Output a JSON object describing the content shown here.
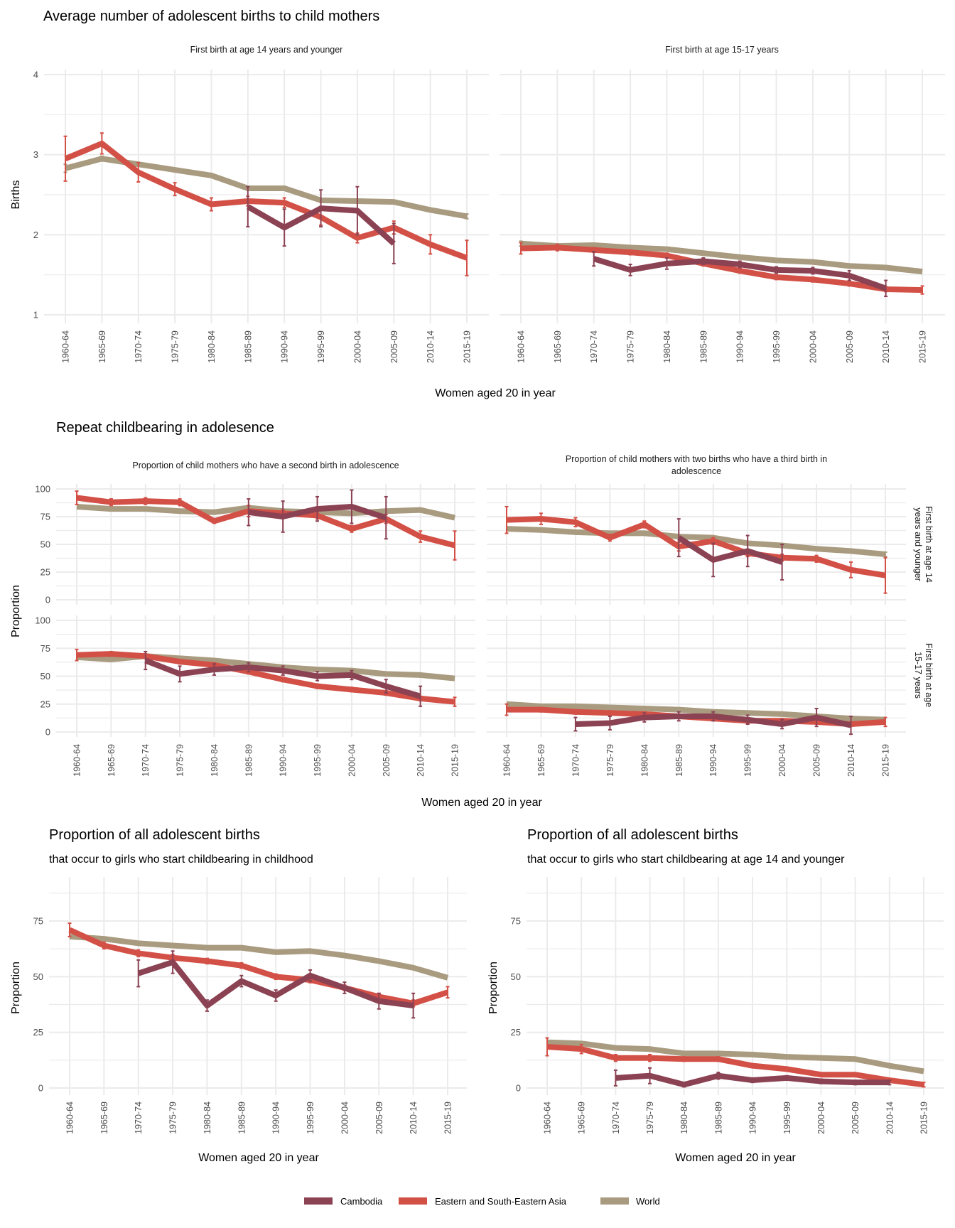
{
  "colors": {
    "Cambodia": "#8b4253",
    "Eastern and South-Eastern Asia": "#d35047",
    "World": "#a99b7f"
  },
  "legend": {
    "items": [
      "Cambodia",
      "Eastern and South-Eastern Asia",
      "World"
    ]
  },
  "chart_data": [
    {
      "id": "births-14",
      "type": "line",
      "section_title": "Average number of adolescent births to child mothers",
      "title": "First birth at age 14 years and younger",
      "xlabel": "Women aged 20 in year",
      "ylabel": "Births",
      "ylim": [
        1,
        4
      ],
      "yticks": [
        1,
        2,
        3,
        4
      ],
      "grid": true,
      "categories": [
        "1960-64",
        "1965-69",
        "1970-74",
        "1975-79",
        "1980-84",
        "1985-89",
        "1990-94",
        "1995-99",
        "2000-04",
        "2005-09",
        "2010-14",
        "2015-19"
      ],
      "series": [
        {
          "name": "World",
          "values": [
            2.83,
            2.95,
            2.88,
            2.81,
            2.74,
            2.58,
            2.58,
            2.43,
            2.42,
            2.41,
            2.31,
            2.23
          ],
          "err": [
            0.05,
            0.03,
            0.02,
            null,
            null,
            null,
            null,
            null,
            null,
            null,
            null,
            0.03
          ]
        },
        {
          "name": "Eastern and South-Eastern Asia",
          "values": [
            2.95,
            3.14,
            2.78,
            2.57,
            2.38,
            2.42,
            2.4,
            2.22,
            1.96,
            2.09,
            1.88,
            1.71
          ],
          "err": [
            0.28,
            0.13,
            0.12,
            0.08,
            0.08,
            0.06,
            0.06,
            0.1,
            0.06,
            0.08,
            0.12,
            0.22
          ]
        },
        {
          "name": "Cambodia",
          "values": [
            null,
            null,
            null,
            null,
            null,
            2.35,
            2.09,
            2.33,
            2.3,
            1.89,
            null,
            null
          ],
          "err": [
            null,
            null,
            null,
            null,
            null,
            0.25,
            0.23,
            0.23,
            0.3,
            0.25,
            null,
            null
          ]
        }
      ]
    },
    {
      "id": "births-1517",
      "type": "line",
      "title": "First birth at age 15-17 years",
      "xlabel": "Women aged 20 in year",
      "ylim": [
        1,
        4
      ],
      "yticks": [
        1,
        2,
        3,
        4
      ],
      "grid": true,
      "categories": [
        "1960-64",
        "1965-69",
        "1970-74",
        "1975-79",
        "1980-84",
        "1985-89",
        "1990-94",
        "1995-99",
        "2000-04",
        "2005-09",
        "2010-14",
        "2015-19"
      ],
      "series": [
        {
          "name": "World",
          "values": [
            1.89,
            1.86,
            1.87,
            1.84,
            1.82,
            1.77,
            1.72,
            1.68,
            1.66,
            1.61,
            1.59,
            1.54
          ],
          "err": [
            0.03,
            null,
            null,
            null,
            null,
            null,
            null,
            null,
            null,
            null,
            null,
            null
          ]
        },
        {
          "name": "Eastern and South-Eastern Asia",
          "values": [
            1.83,
            1.84,
            1.81,
            1.78,
            1.74,
            1.64,
            1.55,
            1.47,
            1.44,
            1.39,
            1.32,
            1.31
          ],
          "err": [
            0.07,
            0.04,
            0.03,
            0.03,
            0.03,
            0.03,
            0.03,
            0.03,
            0.03,
            0.03,
            0.03,
            0.05
          ]
        },
        {
          "name": "Cambodia",
          "values": [
            null,
            null,
            1.7,
            1.56,
            1.64,
            1.67,
            1.63,
            1.56,
            1.55,
            1.49,
            1.33,
            null
          ],
          "err": [
            null,
            null,
            0.09,
            0.07,
            0.07,
            0.04,
            0.04,
            0.04,
            0.04,
            0.06,
            0.1,
            null
          ]
        }
      ]
    },
    {
      "id": "second-birth-14",
      "type": "line",
      "section_title": "Repeat childbearing in adolesence",
      "title": "Proportion of child mothers who have a second birth in adolescence",
      "row_label": "First birth at age 14 years and younger",
      "xlabel": "Women aged 20 in year",
      "ylabel": "Proportion",
      "ylim": [
        0,
        100
      ],
      "yticks": [
        0,
        25,
        50,
        75,
        100
      ],
      "grid": true,
      "categories": [
        "1960-64",
        "1965-69",
        "1970-74",
        "1975-79",
        "1980-84",
        "1985-89",
        "1990-94",
        "1995-99",
        "2000-04",
        "2005-09",
        "2010-14",
        "2015-19"
      ],
      "series": [
        {
          "name": "World",
          "values": [
            84,
            82,
            82,
            80,
            79,
            83,
            80,
            79,
            78,
            80,
            81,
            74
          ],
          "err": [
            null,
            null,
            null,
            null,
            null,
            null,
            null,
            null,
            null,
            null,
            null,
            null
          ]
        },
        {
          "name": "Eastern and South-Eastern Asia",
          "values": [
            92,
            88,
            89,
            88,
            71,
            80,
            78,
            76,
            64,
            73,
            57,
            49
          ],
          "err": [
            6,
            3,
            3,
            3,
            2,
            5,
            3,
            3,
            3,
            4,
            5,
            13
          ]
        },
        {
          "name": "Cambodia",
          "values": [
            null,
            null,
            null,
            null,
            null,
            79,
            75,
            82,
            84,
            74,
            null,
            null
          ],
          "err": [
            null,
            null,
            null,
            null,
            null,
            12,
            14,
            11,
            15,
            19,
            null,
            null
          ]
        }
      ]
    },
    {
      "id": "third-birth-14",
      "type": "line",
      "title": "Proportion of child mothers with two births who have a third birth in adolescence",
      "row_label": "First birth at age 14 years and younger",
      "xlabel": "Women aged 20 in year",
      "ylim": [
        0,
        100
      ],
      "yticks": [
        0,
        25,
        50,
        75,
        100
      ],
      "grid": true,
      "categories": [
        "1960-64",
        "1965-69",
        "1970-74",
        "1975-79",
        "1980-84",
        "1985-89",
        "1990-94",
        "1995-99",
        "2000-04",
        "2005-09",
        "2010-14",
        "2015-19"
      ],
      "series": [
        {
          "name": "World",
          "values": [
            64,
            63,
            61,
            60,
            60,
            57,
            56,
            51,
            49,
            46,
            44,
            41
          ],
          "err": [
            null,
            null,
            null,
            null,
            null,
            null,
            null,
            null,
            null,
            null,
            null,
            2
          ]
        },
        {
          "name": "Eastern and South-Eastern Asia",
          "values": [
            72,
            73,
            70,
            56,
            68,
            48,
            53,
            42,
            38,
            37,
            27,
            22
          ],
          "err": [
            12,
            5,
            4,
            3,
            3,
            4,
            3,
            3,
            3,
            3,
            7,
            16
          ]
        },
        {
          "name": "Cambodia",
          "values": [
            null,
            null,
            null,
            null,
            null,
            56,
            36,
            44,
            34,
            null,
            null,
            null
          ],
          "err": [
            null,
            null,
            null,
            null,
            null,
            17,
            15,
            14,
            16,
            null,
            null,
            null
          ]
        }
      ]
    },
    {
      "id": "second-birth-1517",
      "type": "line",
      "row_label": "First birth at age 15-17 years",
      "xlabel": "Women aged 20 in year",
      "ylabel": "Proportion",
      "ylim": [
        0,
        100
      ],
      "yticks": [
        0,
        25,
        50,
        75,
        100
      ],
      "grid": true,
      "categories": [
        "1960-64",
        "1965-69",
        "1970-74",
        "1975-79",
        "1980-84",
        "1985-89",
        "1990-94",
        "1995-99",
        "2000-04",
        "2005-09",
        "2010-14",
        "2015-19"
      ],
      "series": [
        {
          "name": "World",
          "values": [
            67,
            65,
            68,
            66,
            64,
            61,
            58,
            56,
            55,
            52,
            51,
            48
          ],
          "err": [
            null,
            null,
            null,
            null,
            null,
            null,
            null,
            null,
            null,
            null,
            null,
            null
          ]
        },
        {
          "name": "Eastern and South-Eastern Asia",
          "values": [
            69,
            70,
            68,
            63,
            60,
            54,
            47,
            41,
            38,
            35,
            30,
            27
          ],
          "err": [
            5,
            2,
            2,
            2,
            2,
            2,
            2,
            2,
            2,
            2,
            2,
            4
          ]
        },
        {
          "name": "Cambodia",
          "values": [
            null,
            null,
            64,
            52,
            56,
            58,
            55,
            50,
            51,
            41,
            32,
            null
          ],
          "err": [
            null,
            null,
            8,
            7,
            5,
            4,
            4,
            4,
            4,
            6,
            9,
            null
          ]
        }
      ]
    },
    {
      "id": "third-birth-1517",
      "type": "line",
      "row_label": "First birth at age 15-17 years",
      "xlabel": "Women aged 20 in year",
      "ylim": [
        0,
        100
      ],
      "yticks": [
        0,
        25,
        50,
        75,
        100
      ],
      "grid": true,
      "categories": [
        "1960-64",
        "1965-69",
        "1970-74",
        "1975-79",
        "1980-84",
        "1985-89",
        "1990-94",
        "1995-99",
        "2000-04",
        "2005-09",
        "2010-14",
        "2015-19"
      ],
      "series": [
        {
          "name": "World",
          "values": [
            25,
            23,
            23,
            22,
            21,
            20,
            18,
            17,
            16,
            14,
            12,
            11
          ],
          "err": [
            null,
            null,
            null,
            null,
            null,
            null,
            null,
            null,
            null,
            null,
            null,
            null
          ]
        },
        {
          "name": "Eastern and South-Eastern Asia",
          "values": [
            20,
            20,
            18,
            17,
            16,
            14,
            12,
            10,
            10,
            9,
            7,
            9
          ],
          "err": [
            5,
            2,
            2,
            2,
            2,
            2,
            2,
            2,
            2,
            2,
            2,
            4
          ]
        },
        {
          "name": "Cambodia",
          "values": [
            null,
            null,
            7,
            8,
            13,
            14,
            14,
            11,
            7,
            13,
            6,
            null
          ],
          "err": [
            null,
            null,
            6,
            6,
            4,
            4,
            4,
            4,
            4,
            8,
            8,
            null
          ]
        }
      ]
    },
    {
      "id": "share-childhood",
      "type": "line",
      "section_title": "Proportion of all adolescent births",
      "subtitle": "that occur to girls who start childbearing in childhood",
      "xlabel": "Women aged 20 in year",
      "ylabel": "Proportion",
      "ylim": [
        0,
        90
      ],
      "yticks": [
        0,
        25,
        50,
        75
      ],
      "grid": true,
      "categories": [
        "1960-64",
        "1965-69",
        "1970-74",
        "1975-79",
        "1980-84",
        "1985-89",
        "1990-94",
        "1995-99",
        "2000-04",
        "2005-09",
        "2010-14",
        "2015-19"
      ],
      "series": [
        {
          "name": "World",
          "values": [
            68,
            67,
            65,
            64,
            63,
            63,
            61,
            61.5,
            59.5,
            57,
            54,
            49.5
          ],
          "err": [
            null,
            null,
            null,
            null,
            null,
            null,
            null,
            null,
            null,
            null,
            null,
            null
          ]
        },
        {
          "name": "Eastern and South-Eastern Asia",
          "values": [
            71,
            64,
            60.5,
            58.5,
            57,
            55,
            50,
            48.5,
            45,
            41,
            38,
            43
          ],
          "err": [
            3,
            1.5,
            1.5,
            1.5,
            1.2,
            1.2,
            1.2,
            1.2,
            1.2,
            1.5,
            1.5,
            2.5
          ]
        },
        {
          "name": "Cambodia",
          "values": [
            null,
            null,
            51.5,
            56.5,
            37,
            48,
            41.5,
            50.5,
            45,
            39,
            37,
            null
          ],
          "err": [
            null,
            null,
            6,
            5,
            2.5,
            2.5,
            2.5,
            2.5,
            2.5,
            3.5,
            5.5,
            null
          ]
        }
      ]
    },
    {
      "id": "share-14",
      "type": "line",
      "section_title": "Proportion of all adolescent births",
      "subtitle": "that occur to girls who start childbearing at age 14 and younger",
      "xlabel": "Women aged 20 in year",
      "ylabel": "Proportion",
      "ylim": [
        0,
        90
      ],
      "yticks": [
        0,
        25,
        50,
        75
      ],
      "grid": true,
      "categories": [
        "1960-64",
        "1965-69",
        "1970-74",
        "1975-79",
        "1980-84",
        "1985-89",
        "1990-94",
        "1995-99",
        "2000-04",
        "2005-09",
        "2010-14",
        "2015-19"
      ],
      "series": [
        {
          "name": "World",
          "values": [
            20.5,
            20,
            18,
            17.5,
            15.5,
            15.5,
            15,
            14,
            13.5,
            13,
            10,
            7.5
          ],
          "err": [
            null,
            null,
            null,
            null,
            null,
            null,
            null,
            null,
            null,
            null,
            null,
            null
          ]
        },
        {
          "name": "Eastern and South-Eastern Asia",
          "values": [
            18.5,
            17.5,
            13.5,
            13.5,
            13,
            13,
            10,
            8.5,
            6,
            6,
            3.5,
            1.5
          ],
          "err": [
            4,
            2,
            1.5,
            1.5,
            1,
            1,
            0.8,
            0.8,
            0.8,
            0.8,
            0.8,
            1
          ]
        },
        {
          "name": "Cambodia",
          "values": [
            null,
            null,
            4.5,
            5.5,
            1.5,
            5.5,
            3.5,
            4.5,
            3,
            2.5,
            2.5,
            null
          ],
          "err": [
            null,
            null,
            3.5,
            3.5,
            1,
            1.5,
            1,
            1,
            1,
            1,
            1,
            null
          ]
        }
      ]
    }
  ]
}
